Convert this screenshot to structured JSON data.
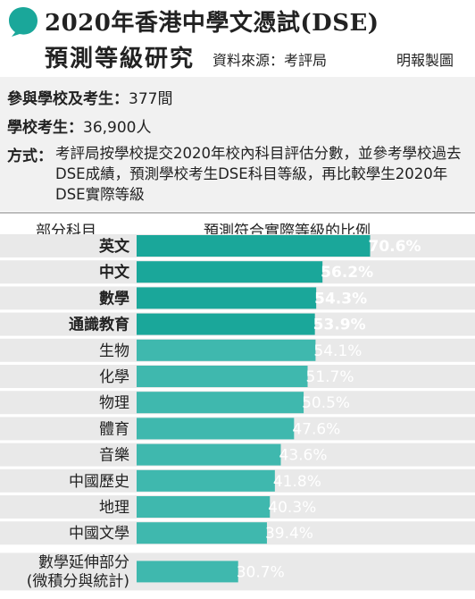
{
  "header": {
    "title_line1": "2020年香港中學文憑試(DSE)",
    "title_line2": "預測等級研究",
    "source": "資料來源：考評局",
    "publisher": "明報製圖"
  },
  "info": {
    "schools_label": "參與學校及考生：",
    "schools_value": "377間",
    "students_label": "學校考生：",
    "students_value": "36,900人",
    "method_label": "方式：",
    "method_text": "考評局按學校提交2020年校內科目評估分數，並參考學校過去DSE成績，預測學校考生DSE科目等級，再比較學生2020年DSE實際等級"
  },
  "colors": {
    "bar_core": "#1aa79a",
    "bar_elective": "#3fb8ae",
    "row_bg": "#e9e9e9",
    "label_core_text": "#ffffff",
    "label_elective_text": "#ffffff"
  },
  "chart_data": {
    "type": "bar",
    "orientation": "horizontal",
    "category_header": "部分科目",
    "value_header": "預測符合實際等級的比例",
    "unit": "%",
    "xlim": [
      0,
      100
    ],
    "categories": [
      "英文",
      "中文",
      "數學",
      "通識教育",
      "生物",
      "化學",
      "物理",
      "體育",
      "音樂",
      "中國歷史",
      "地理",
      "中國文學",
      "數學延伸部分\n(微積分與統計)"
    ],
    "values": [
      70.6,
      56.2,
      54.3,
      53.9,
      54.1,
      51.7,
      50.5,
      47.6,
      43.6,
      41.8,
      40.3,
      39.4,
      30.7
    ],
    "labels": [
      "70.6%",
      "56.2%",
      "54.3%",
      "53.9%",
      "54.1%",
      "51.7%",
      "50.5%",
      "47.6%",
      "43.6%",
      "41.8%",
      "40.3%",
      "39.4%",
      "30.7%"
    ],
    "core_subjects": [
      "英文",
      "中文",
      "數學",
      "通識教育"
    ]
  }
}
